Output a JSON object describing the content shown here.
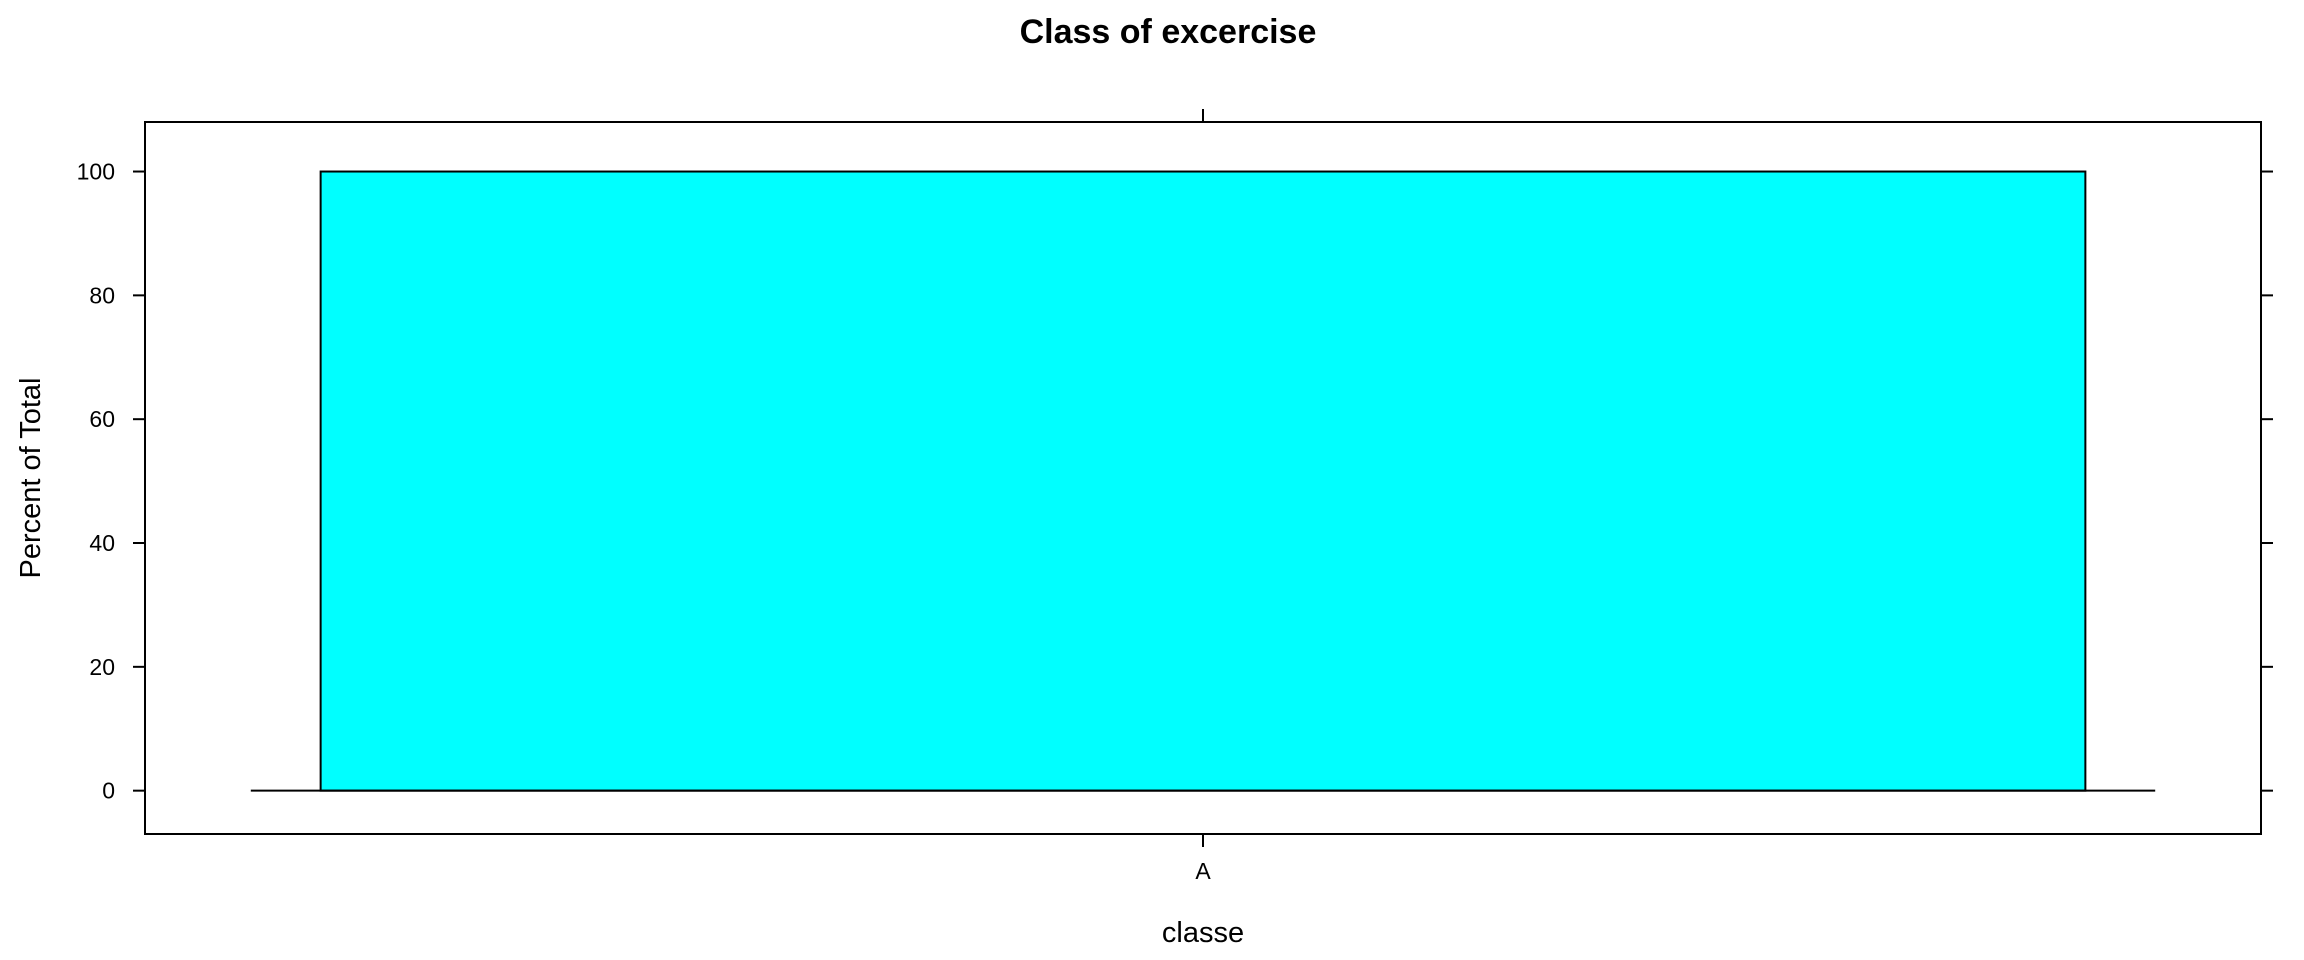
{
  "chart_data": {
    "type": "bar",
    "title": "Class of excercise",
    "xlabel": "classe",
    "ylabel": "Percent of Total",
    "categories": [
      "A"
    ],
    "values": [
      100
    ],
    "ylim": [
      -7,
      108
    ],
    "yticks": [
      0,
      20,
      40,
      60,
      80,
      100
    ],
    "bar_color": "#00ffff",
    "grid": false,
    "legend": "none"
  }
}
